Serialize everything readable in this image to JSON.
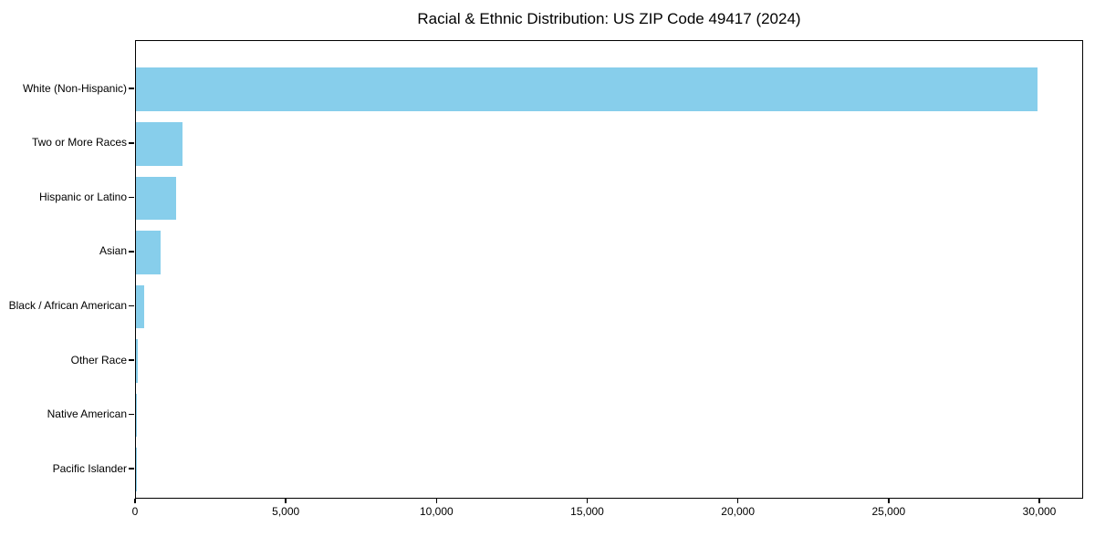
{
  "chart_data": {
    "type": "bar",
    "orientation": "horizontal",
    "title": "Racial & Ethnic Distribution: US ZIP Code 49417 (2024)",
    "categories": [
      "White (Non-Hispanic)",
      "Two or More Races",
      "Hispanic or Latino",
      "Asian",
      "Black / African American",
      "Other Race",
      "Native American",
      "Pacific Islander"
    ],
    "values": [
      29920,
      1550,
      1340,
      825,
      265,
      55,
      25,
      8
    ],
    "xlabel": "",
    "ylabel": "",
    "xlim": [
      0,
      31453
    ],
    "xticks": [
      0,
      5000,
      10000,
      15000,
      20000,
      25000,
      30000
    ],
    "xtick_labels": [
      "0",
      "5,000",
      "10,000",
      "15,000",
      "20,000",
      "25,000",
      "30,000"
    ],
    "bar_color": "#87CEEB",
    "background": "#FFFFFF",
    "text_color": "#000000",
    "grid": false,
    "legend": null
  }
}
